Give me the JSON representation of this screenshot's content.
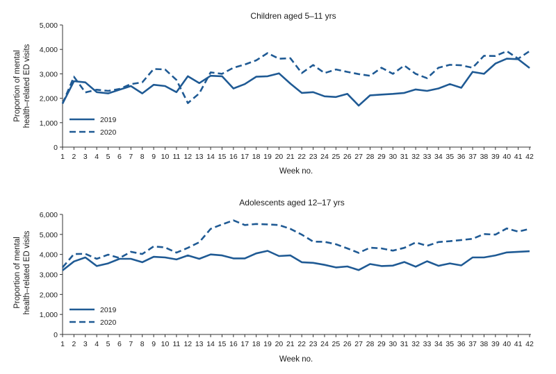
{
  "colors": {
    "series": "#1f5a94",
    "axis": "#333333",
    "text": "#1a1a1a"
  },
  "chart_data": [
    {
      "type": "line",
      "title": "Children aged 5–11 yrs",
      "xlabel": "Week no.",
      "ylabel_lines": [
        "Proportion of mental",
        "health–related ED visits"
      ],
      "x": [
        1,
        2,
        3,
        4,
        5,
        6,
        7,
        8,
        9,
        10,
        11,
        12,
        13,
        14,
        15,
        16,
        17,
        18,
        19,
        20,
        21,
        22,
        23,
        24,
        25,
        26,
        27,
        28,
        29,
        30,
        31,
        32,
        33,
        34,
        35,
        36,
        37,
        38,
        39,
        40,
        41,
        42
      ],
      "xlim": [
        1,
        42
      ],
      "ylim": [
        0,
        5000
      ],
      "yticks": [
        0,
        1000,
        2000,
        3000,
        4000,
        5000
      ],
      "ytick_labels": [
        "0",
        "1,000",
        "2,000",
        "3,000",
        "4,000",
        "5,000"
      ],
      "legend_position": "bottom-left",
      "grid": false,
      "series": [
        {
          "name": "2019",
          "style": "solid",
          "values": [
            1780,
            2700,
            2650,
            2250,
            2200,
            2350,
            2500,
            2200,
            2550,
            2500,
            2250,
            2900,
            2620,
            2920,
            2900,
            2400,
            2580,
            2880,
            2900,
            3020,
            2600,
            2220,
            2250,
            2080,
            2050,
            2180,
            1700,
            2120,
            2150,
            2180,
            2220,
            2360,
            2300,
            2400,
            2580,
            2430,
            3080,
            3000,
            3420,
            3620,
            3600,
            3240
          ]
        },
        {
          "name": "2020",
          "style": "dashed",
          "values": [
            1780,
            2880,
            2240,
            2350,
            2300,
            2380,
            2580,
            2650,
            3200,
            3180,
            2750,
            1800,
            2200,
            3060,
            3000,
            3250,
            3380,
            3550,
            3850,
            3620,
            3640,
            3030,
            3360,
            3030,
            3180,
            3080,
            2990,
            2920,
            3250,
            3000,
            3340,
            3000,
            2820,
            3250,
            3370,
            3350,
            3250,
            3740,
            3730,
            3930,
            3620,
            3930
          ]
        }
      ]
    },
    {
      "type": "line",
      "title": "Adolescents aged 12–17 yrs",
      "xlabel": "Week no.",
      "ylabel_lines": [
        "Proportion of mental",
        "health–related ED visits"
      ],
      "x": [
        1,
        2,
        3,
        4,
        5,
        6,
        7,
        8,
        9,
        10,
        11,
        12,
        13,
        14,
        15,
        16,
        17,
        18,
        19,
        20,
        21,
        22,
        23,
        24,
        25,
        26,
        27,
        28,
        29,
        30,
        31,
        32,
        33,
        34,
        35,
        36,
        37,
        38,
        39,
        40,
        41,
        42
      ],
      "xlim": [
        1,
        42
      ],
      "ylim": [
        0,
        6000
      ],
      "yticks": [
        0,
        1000,
        2000,
        3000,
        4000,
        5000,
        6000
      ],
      "ytick_labels": [
        "0",
        "1,000",
        "2,000",
        "3,000",
        "4,000",
        "5,000",
        "6,000"
      ],
      "legend_position": "bottom-left",
      "grid": false,
      "series": [
        {
          "name": "2019",
          "style": "solid",
          "values": [
            3200,
            3650,
            3850,
            3420,
            3550,
            3780,
            3780,
            3610,
            3880,
            3850,
            3750,
            3950,
            3780,
            4000,
            3950,
            3800,
            3800,
            4050,
            4180,
            3920,
            3950,
            3610,
            3580,
            3480,
            3350,
            3400,
            3220,
            3520,
            3420,
            3440,
            3620,
            3390,
            3660,
            3430,
            3550,
            3450,
            3850,
            3850,
            3950,
            4100,
            4130,
            4160
          ]
        },
        {
          "name": "2020",
          "style": "dashed",
          "values": [
            3350,
            4020,
            4030,
            3780,
            3990,
            3820,
            4130,
            4020,
            4400,
            4350,
            4090,
            4330,
            4610,
            5280,
            5500,
            5700,
            5470,
            5520,
            5500,
            5470,
            5280,
            4990,
            4640,
            4630,
            4510,
            4300,
            4080,
            4340,
            4300,
            4190,
            4330,
            4600,
            4430,
            4620,
            4660,
            4720,
            4780,
            5020,
            4990,
            5300,
            5140,
            5280
          ]
        }
      ]
    }
  ]
}
